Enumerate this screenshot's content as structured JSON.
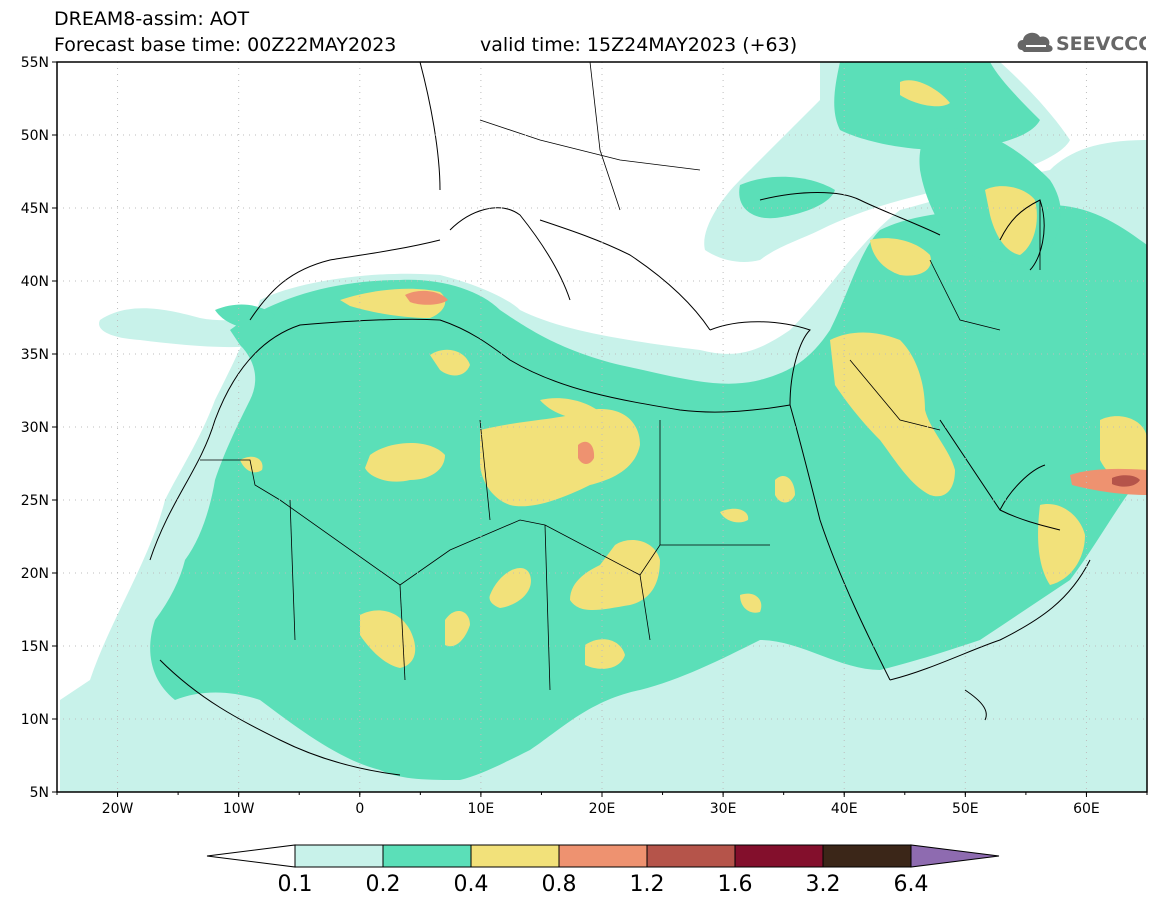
{
  "header": {
    "title": "DREAM8-assim: AOT",
    "base_time": "Forecast base time: 00Z22MAY2023",
    "valid_time": "valid time: 15Z24MAY2023 (+63)"
  },
  "logo": {
    "text": "SEEVCCC",
    "icon": "cloud-icon"
  },
  "axes": {
    "lat_labels": [
      "55N",
      "50N",
      "45N",
      "40N",
      "35N",
      "30N",
      "25N",
      "20N",
      "15N",
      "10N",
      "5N"
    ],
    "lon_labels": [
      "20W",
      "10W",
      "0",
      "10E",
      "20E",
      "30E",
      "40E",
      "50E",
      "60E"
    ]
  },
  "legend": {
    "labels": [
      "0.1",
      "0.2",
      "0.4",
      "0.8",
      "1.2",
      "1.6",
      "3.2",
      "6.4"
    ],
    "colors": [
      "#c8f2ea",
      "#5bdfb8",
      "#f2e17a",
      "#ee9270",
      "#b5544a",
      "#830f2c",
      "#3b2618",
      "#8e6bb0"
    ]
  }
}
